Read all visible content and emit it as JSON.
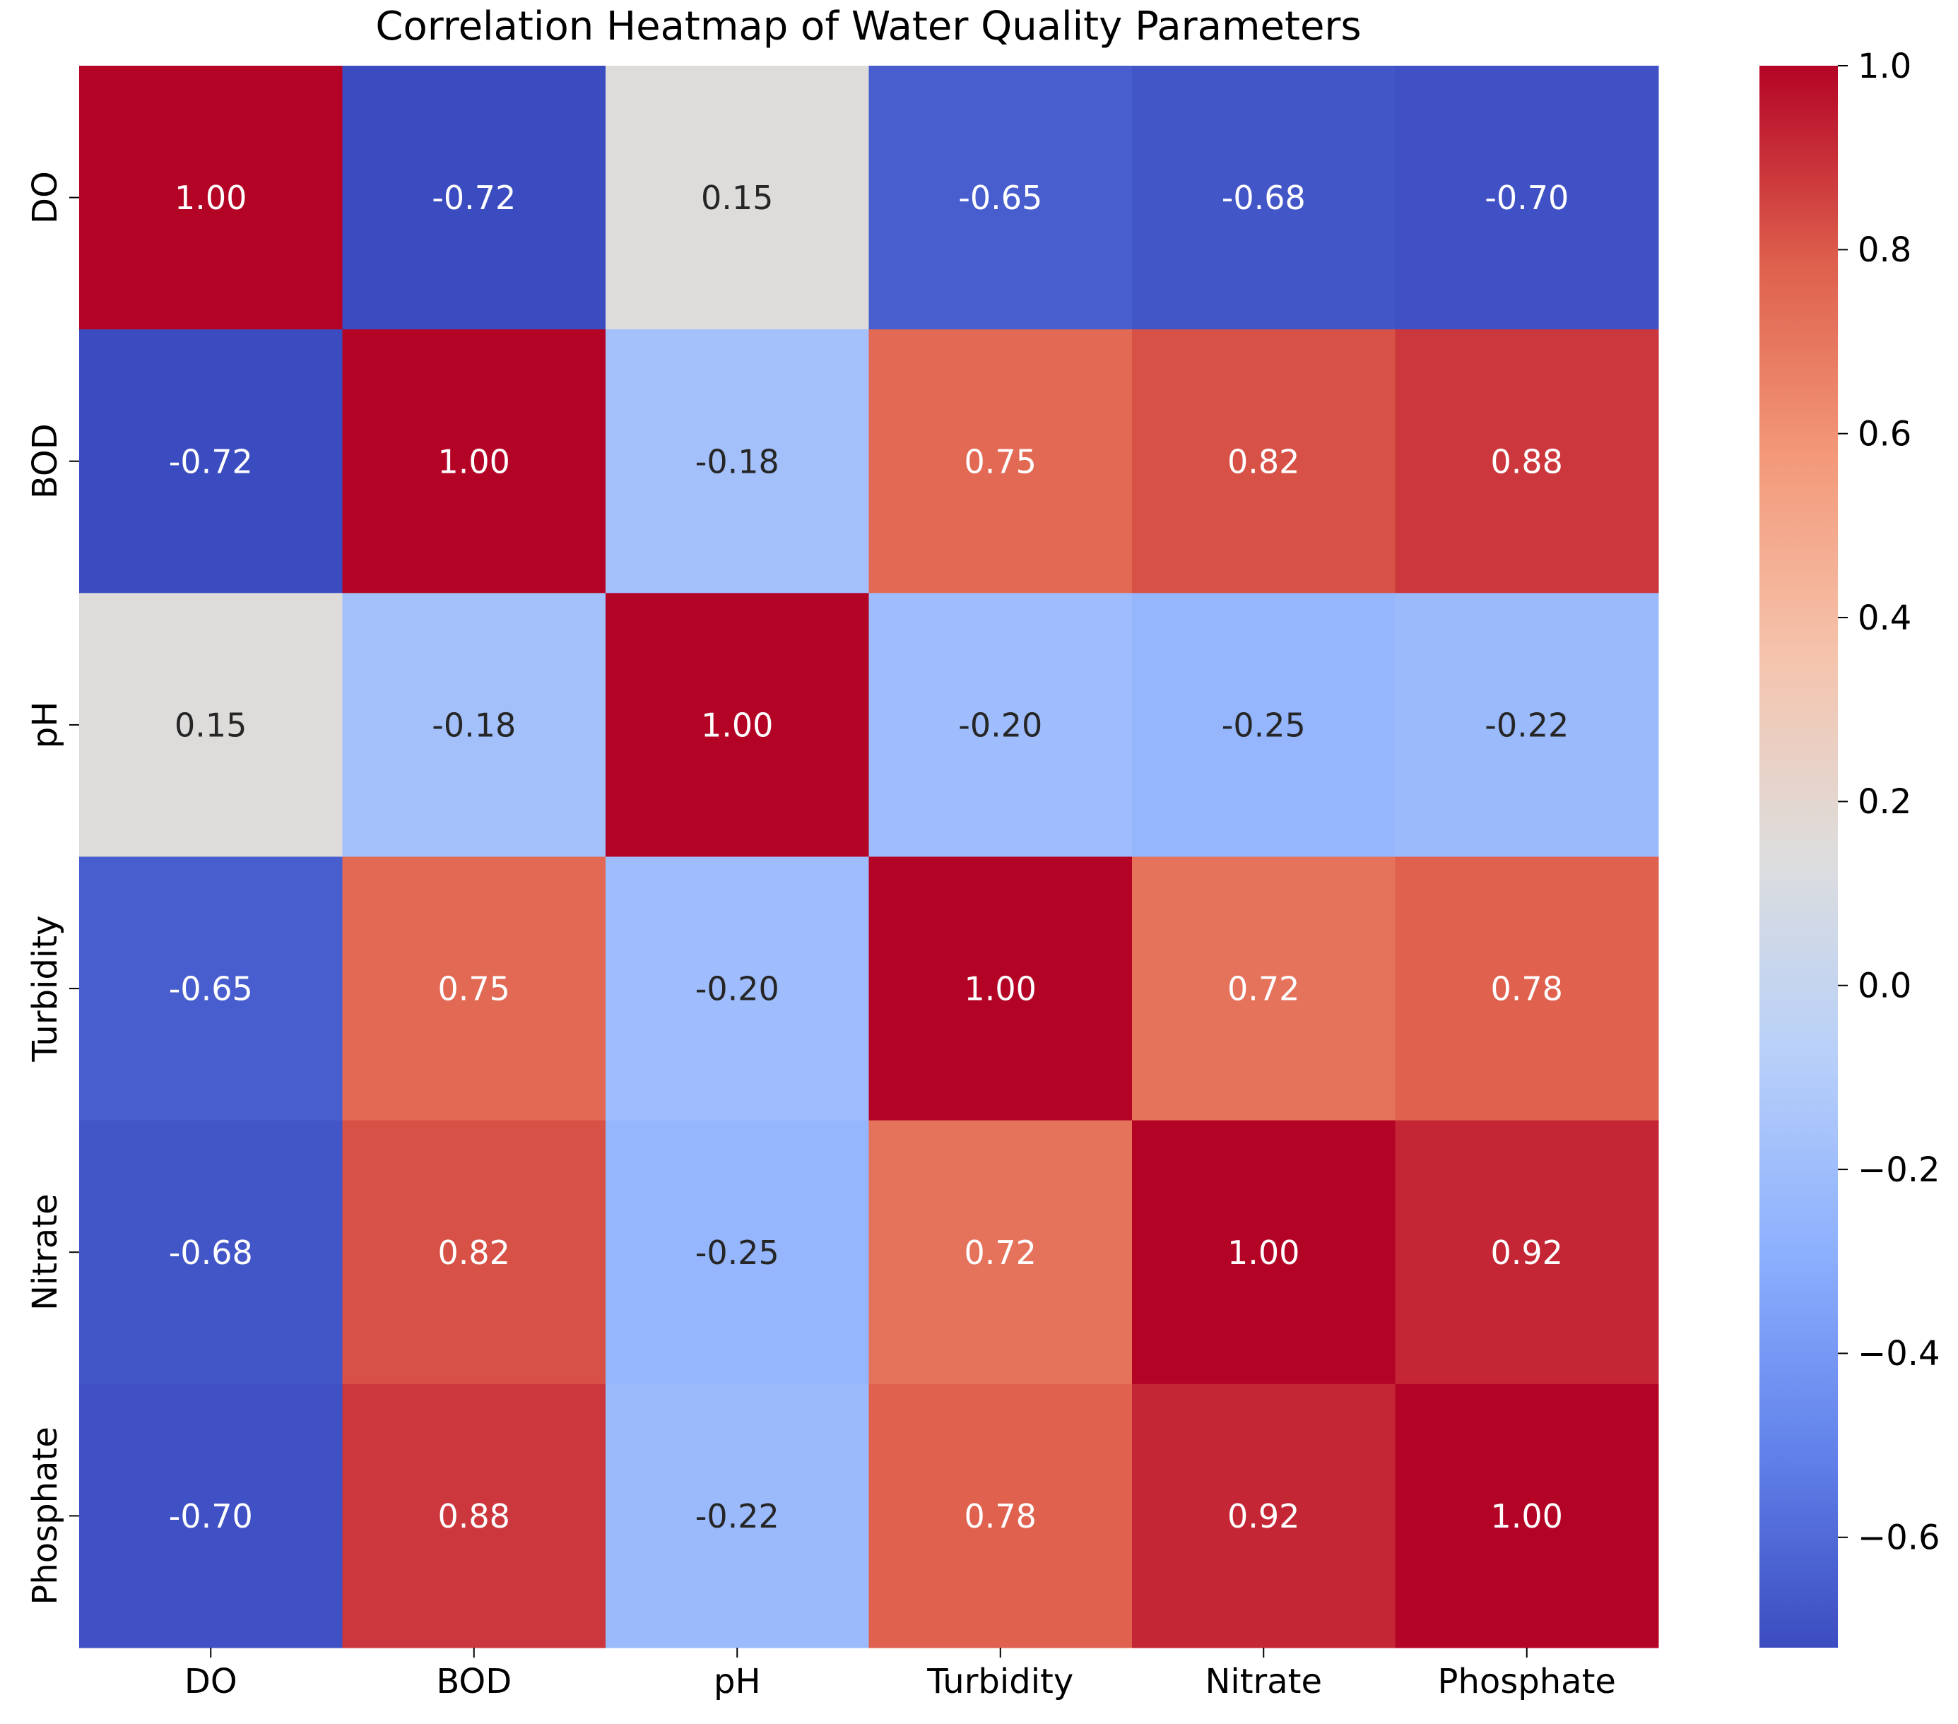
{
  "chart_data": {
    "type": "heatmap",
    "title": "Correlation Heatmap of Water Quality Parameters",
    "xlabel": "",
    "ylabel": "",
    "x_labels": [
      "DO",
      "BOD",
      "pH",
      "Turbidity",
      "Nitrate",
      "Phosphate"
    ],
    "y_labels": [
      "DO",
      "BOD",
      "pH",
      "Turbidity",
      "Nitrate",
      "Phosphate"
    ],
    "matrix": [
      [
        1.0,
        -0.72,
        0.15,
        -0.65,
        -0.68,
        -0.7
      ],
      [
        -0.72,
        1.0,
        -0.18,
        0.75,
        0.82,
        0.88
      ],
      [
        0.15,
        -0.18,
        1.0,
        -0.2,
        -0.25,
        -0.22
      ],
      [
        -0.65,
        0.75,
        -0.2,
        1.0,
        0.72,
        0.78
      ],
      [
        -0.68,
        0.82,
        -0.25,
        0.72,
        1.0,
        0.92
      ],
      [
        -0.7,
        0.88,
        -0.22,
        0.78,
        0.92,
        1.0
      ]
    ],
    "cell_labels": [
      [
        "1.00",
        "-0.72",
        "0.15",
        "-0.65",
        "-0.68",
        "-0.70"
      ],
      [
        "-0.72",
        "1.00",
        "-0.18",
        "0.75",
        "0.82",
        "0.88"
      ],
      [
        "0.15",
        "-0.18",
        "1.00",
        "-0.20",
        "-0.25",
        "-0.22"
      ],
      [
        "-0.65",
        "0.75",
        "-0.20",
        "1.00",
        "0.72",
        "0.78"
      ],
      [
        "-0.68",
        "0.82",
        "-0.25",
        "0.72",
        "1.00",
        "0.92"
      ],
      [
        "-0.70",
        "0.88",
        "-0.22",
        "0.78",
        "0.92",
        "1.00"
      ]
    ],
    "colormap": "coolwarm",
    "vmin": -0.72,
    "vmax": 1.0,
    "colorbar_ticks": [
      1.0,
      0.8,
      0.6,
      0.4,
      0.2,
      0.0,
      -0.2,
      -0.4,
      -0.6
    ],
    "colorbar_tick_labels": [
      "1.0",
      "0.8",
      "0.6",
      "0.4",
      "0.2",
      "0.0",
      "−0.2",
      "−0.4",
      "−0.6"
    ],
    "grid": false,
    "legend": "colorbar-right"
  }
}
